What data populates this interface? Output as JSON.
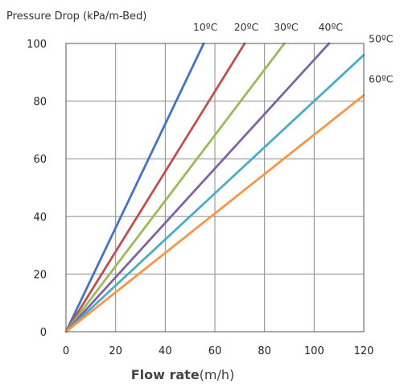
{
  "chart_data": {
    "type": "line",
    "title": "",
    "ylabel": "Pressure Drop (kPa/m-Bed)",
    "xlabel_bold": "Flow rate",
    "xlabel_unit": "(m/h)",
    "xlim": [
      0,
      120
    ],
    "ylim": [
      0,
      100
    ],
    "xticks": [
      0,
      20,
      40,
      60,
      80,
      100,
      120
    ],
    "yticks": [
      0,
      20,
      40,
      60,
      80,
      100
    ],
    "grid": true,
    "legend": "inline labels at line ends",
    "series": [
      {
        "name": "10ºC",
        "color": "#4472C4",
        "x": [
          0,
          55.5
        ],
        "y": [
          0,
          100
        ]
      },
      {
        "name": "20ºC",
        "color": "#C0504D",
        "x": [
          0,
          72
        ],
        "y": [
          0,
          100
        ]
      },
      {
        "name": "30ºC",
        "color": "#9BBB59",
        "x": [
          0,
          88
        ],
        "y": [
          0,
          100
        ]
      },
      {
        "name": "40ºC",
        "color": "#8064A2",
        "x": [
          0,
          106
        ],
        "y": [
          0,
          100
        ]
      },
      {
        "name": "50ºC",
        "color": "#4BACC6",
        "x": [
          0,
          120
        ],
        "y": [
          0,
          96
        ]
      },
      {
        "name": "60ºC",
        "color": "#F79646",
        "x": [
          0,
          120
        ],
        "y": [
          0,
          82
        ]
      }
    ]
  }
}
